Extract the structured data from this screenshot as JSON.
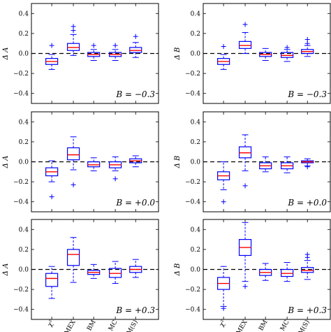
{
  "chart_data": [
    {
      "type": "box",
      "ylabel": "Δ A",
      "annotation": "B = −0.3",
      "ylim": [
        -0.5,
        0.5
      ],
      "yticks": [
        "−0.4",
        "−0.2",
        "0.0",
        "0.2",
        "0.4"
      ],
      "categories": [
        "χ²",
        "SIMEX",
        "BM",
        "MC",
        "HM(S)"
      ],
      "boxes": [
        {
          "whisker_low": -0.16,
          "q1": -0.11,
          "median": -0.08,
          "q3": -0.05,
          "whisker_high": -0.01,
          "outliers": [
            0.08
          ]
        },
        {
          "whisker_low": -0.02,
          "q1": 0.03,
          "median": 0.06,
          "q3": 0.1,
          "whisker_high": 0.19,
          "outliers": [
            0.23,
            0.27
          ]
        },
        {
          "whisker_low": -0.07,
          "q1": -0.03,
          "median": -0.01,
          "q3": 0.01,
          "whisker_high": 0.04,
          "outliers": [
            0.08
          ]
        },
        {
          "whisker_low": -0.07,
          "q1": -0.03,
          "median": -0.01,
          "q3": 0.01,
          "whisker_high": 0.04,
          "outliers": [
            0.08
          ]
        },
        {
          "whisker_low": -0.04,
          "q1": 0.01,
          "median": 0.03,
          "q3": 0.06,
          "whisker_high": 0.11,
          "outliers": [
            0.17
          ]
        }
      ]
    },
    {
      "type": "box",
      "ylabel": "Δ B",
      "annotation": "B = −0.3",
      "ylim": [
        -0.5,
        0.5
      ],
      "yticks": [
        "−0.4",
        "−0.2",
        "0.0",
        "0.2",
        "0.4"
      ],
      "categories": [
        "χ²",
        "SIMEX",
        "BM",
        "MC",
        "HM(S)"
      ],
      "boxes": [
        {
          "whisker_low": -0.16,
          "q1": -0.11,
          "median": -0.08,
          "q3": -0.05,
          "whisker_high": -0.01,
          "outliers": [
            0.07
          ]
        },
        {
          "whisker_low": 0.0,
          "q1": 0.05,
          "median": 0.08,
          "q3": 0.12,
          "whisker_high": 0.21,
          "outliers": [
            0.29
          ]
        },
        {
          "whisker_low": -0.07,
          "q1": -0.03,
          "median": -0.01,
          "q3": 0.01,
          "whisker_high": 0.05,
          "outliers": []
        },
        {
          "whisker_low": -0.08,
          "q1": -0.04,
          "median": -0.02,
          "q3": 0.01,
          "whisker_high": 0.04,
          "outliers": [
            0.06
          ]
        },
        {
          "whisker_low": -0.03,
          "q1": 0.0,
          "median": 0.02,
          "q3": 0.04,
          "whisker_high": 0.08,
          "outliers": [
            0.1,
            0.14
          ]
        }
      ]
    },
    {
      "type": "box",
      "ylabel": "Δ A",
      "annotation": "B = +0.0",
      "ylim": [
        -0.5,
        0.5
      ],
      "yticks": [
        "−0.4",
        "−0.2",
        "0.0",
        "0.2",
        "0.4"
      ],
      "categories": [
        "χ²",
        "SIMEX",
        "BM",
        "MC",
        "HM(S)"
      ],
      "boxes": [
        {
          "whisker_low": -0.2,
          "q1": -0.14,
          "median": -0.1,
          "q3": -0.06,
          "whisker_high": 0.01,
          "outliers": [
            -0.35
          ]
        },
        {
          "whisker_low": -0.08,
          "q1": 0.02,
          "median": 0.07,
          "q3": 0.14,
          "whisker_high": 0.25,
          "outliers": [
            -0.23
          ]
        },
        {
          "whisker_low": -0.09,
          "q1": -0.05,
          "median": -0.03,
          "q3": 0.0,
          "whisker_high": 0.04,
          "outliers": []
        },
        {
          "whisker_low": -0.09,
          "q1": -0.06,
          "median": -0.03,
          "q3": 0.0,
          "whisker_high": 0.05,
          "outliers": [
            -0.17
          ]
        },
        {
          "whisker_low": -0.05,
          "q1": -0.01,
          "median": 0.01,
          "q3": 0.03,
          "whisker_high": 0.06,
          "outliers": []
        }
      ]
    },
    {
      "type": "box",
      "ylabel": "Δ B",
      "annotation": "B = +0.0",
      "ylim": [
        -0.5,
        0.5
      ],
      "yticks": [
        "−0.4",
        "−0.2",
        "0.0",
        "0.2",
        "0.4"
      ],
      "categories": [
        "χ²",
        "SIMEX",
        "BM",
        "MC",
        "HM(S)"
      ],
      "boxes": [
        {
          "whisker_low": -0.28,
          "q1": -0.18,
          "median": -0.14,
          "q3": -0.1,
          "whisker_high": 0.0,
          "outliers": [
            -0.4
          ]
        },
        {
          "whisker_low": -0.09,
          "q1": 0.04,
          "median": 0.09,
          "q3": 0.15,
          "whisker_high": 0.27,
          "outliers": [
            -0.24
          ]
        },
        {
          "whisker_low": -0.1,
          "q1": -0.07,
          "median": -0.04,
          "q3": -0.01,
          "whisker_high": 0.05,
          "outliers": []
        },
        {
          "whisker_low": -0.11,
          "q1": -0.07,
          "median": -0.04,
          "q3": -0.01,
          "whisker_high": 0.05,
          "outliers": []
        },
        {
          "whisker_low": -0.04,
          "q1": -0.01,
          "median": 0.0,
          "q3": 0.01,
          "whisker_high": 0.03,
          "outliers": [
            -0.05
          ]
        }
      ]
    },
    {
      "type": "box",
      "ylabel": "Δ A",
      "annotation": "B = +0.3",
      "ylim": [
        -0.5,
        0.5
      ],
      "yticks": [
        "−0.4",
        "−0.2",
        "0.0",
        "0.2",
        "0.4"
      ],
      "categories": [
        "χ²",
        "SIMEX",
        "BM",
        "MC",
        "HM(S)"
      ],
      "boxes": [
        {
          "whisker_low": -0.29,
          "q1": -0.17,
          "median": -0.09,
          "q3": -0.04,
          "whisker_high": 0.03,
          "outliers": []
        },
        {
          "whisker_low": -0.13,
          "q1": 0.04,
          "median": 0.15,
          "q3": 0.2,
          "whisker_high": 0.32,
          "outliers": []
        },
        {
          "whisker_low": -0.09,
          "q1": -0.05,
          "median": -0.03,
          "q3": -0.01,
          "whisker_high": 0.05,
          "outliers": []
        },
        {
          "whisker_low": -0.14,
          "q1": -0.08,
          "median": -0.04,
          "q3": 0.01,
          "whisker_high": 0.08,
          "outliers": []
        },
        {
          "whisker_low": -0.08,
          "q1": -0.03,
          "median": -0.0,
          "q3": 0.03,
          "whisker_high": 0.1,
          "outliers": []
        }
      ]
    },
    {
      "type": "box",
      "ylabel": "Δ B",
      "annotation": "B = +0.3",
      "ylim": [
        -0.5,
        0.5
      ],
      "yticks": [
        "−0.4",
        "−0.2",
        "0.0",
        "0.2",
        "0.4"
      ],
      "categories": [
        "χ²",
        "SIMEX",
        "BM",
        "MC",
        "HM(S)"
      ],
      "boxes": [
        {
          "whisker_low": -0.37,
          "q1": -0.2,
          "median": -0.14,
          "q3": -0.08,
          "whisker_high": 0.03,
          "outliers": [
            -0.39
          ]
        },
        {
          "whisker_low": -0.12,
          "q1": 0.14,
          "median": 0.22,
          "q3": 0.3,
          "whisker_high": 0.47,
          "outliers": [
            -0.17
          ]
        },
        {
          "whisker_low": -0.11,
          "q1": -0.06,
          "median": -0.03,
          "q3": 0.0,
          "whisker_high": 0.06,
          "outliers": []
        },
        {
          "whisker_low": -0.12,
          "q1": -0.07,
          "median": -0.04,
          "q3": 0.0,
          "whisker_high": 0.07,
          "outliers": []
        },
        {
          "whisker_low": -0.1,
          "q1": -0.03,
          "median": -0.01,
          "q3": 0.02,
          "whisker_high": 0.09,
          "outliers": [
            0.12,
            0.15
          ]
        }
      ]
    }
  ],
  "colors": {
    "box": "#0000ff",
    "median": "#ff0000",
    "zero_line": "#000000"
  }
}
